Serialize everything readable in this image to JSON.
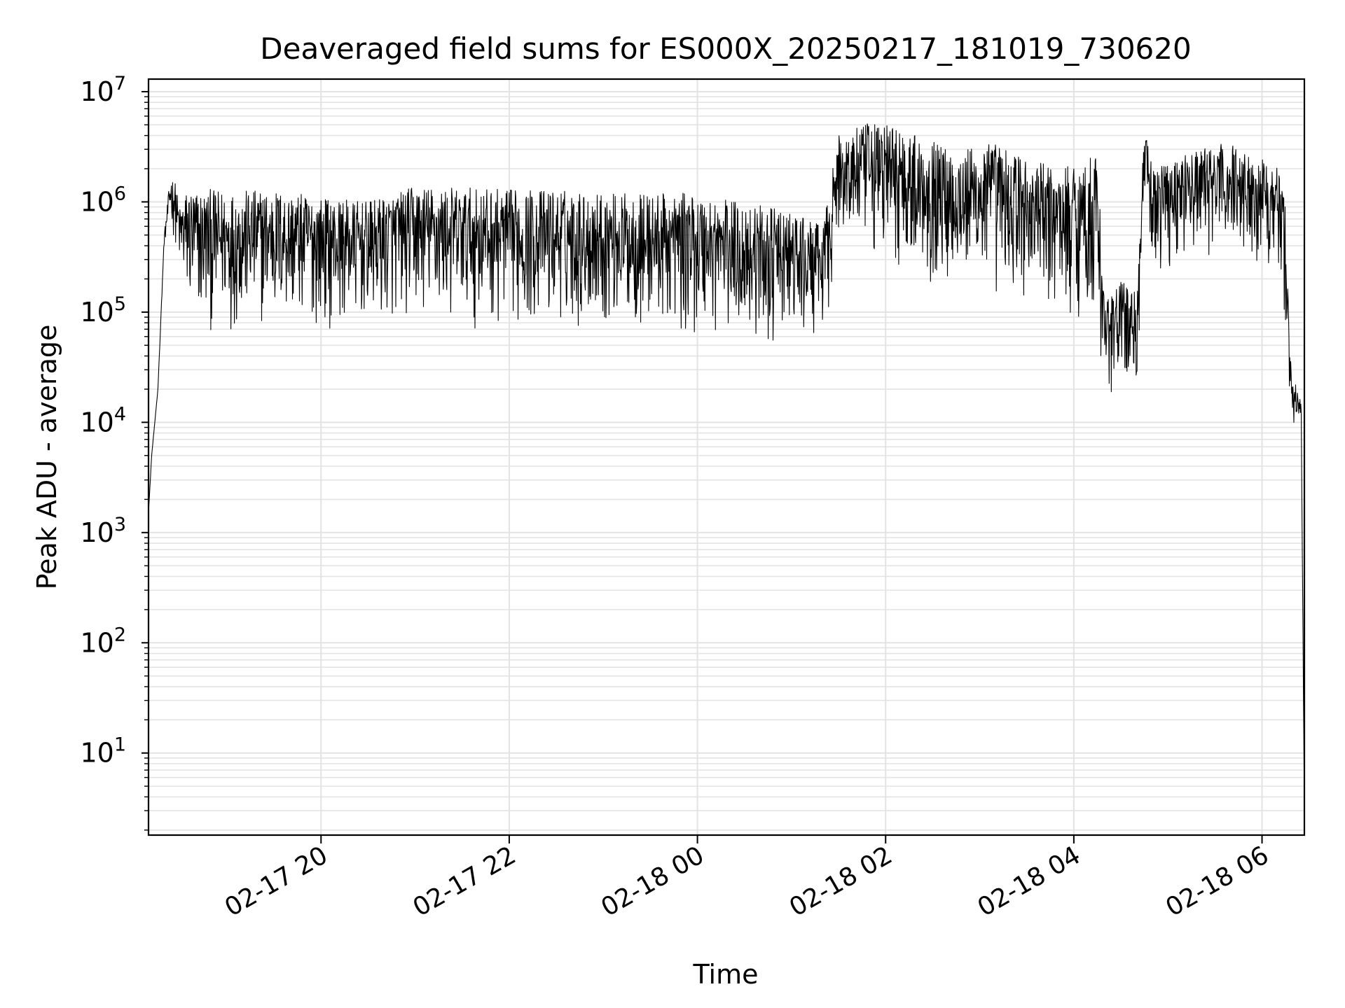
{
  "chart_data": {
    "type": "line",
    "title": "Deaveraged field sums for ES000X_20250217_181019_730620",
    "xlabel": "Time",
    "ylabel": "Peak ADU - average",
    "yscale": "log",
    "ylim": [
      1.8,
      13000000
    ],
    "xlim": [
      "2025-02-17 18:10",
      "2025-02-18 06:27"
    ],
    "grid": true,
    "x_ticks": [
      "2025-02-17 20:00",
      "2025-02-17 22:00",
      "2025-02-18 00:00",
      "2025-02-18 02:00",
      "2025-02-18 04:00",
      "2025-02-18 06:00"
    ],
    "x_tick_labels": [
      "02-17 20",
      "02-17 22",
      "02-18 00",
      "02-18 02",
      "02-18 04",
      "02-18 06"
    ],
    "y_tick_labels": [
      {
        "base": "10",
        "exp": "1"
      },
      {
        "base": "10",
        "exp": "2"
      },
      {
        "base": "10",
        "exp": "3"
      },
      {
        "base": "10",
        "exp": "4"
      },
      {
        "base": "10",
        "exp": "5"
      },
      {
        "base": "10",
        "exp": "6"
      },
      {
        "base": "10",
        "exp": "7"
      }
    ],
    "series": [
      {
        "color": "#000000",
        "x": [
          "2025-02-17 18:10",
          "2025-02-17 18:12",
          "2025-02-17 18:16",
          "2025-02-17 18:20",
          "2025-02-17 18:24",
          "2025-02-17 18:27",
          "2025-02-17 18:30",
          "2025-02-17 18:33",
          "2025-02-17 18:36",
          "2025-02-17 18:40",
          "2025-02-17 18:50",
          "2025-02-17 19:00",
          "2025-02-17 19:30",
          "2025-02-17 20:00",
          "2025-02-17 20:30",
          "2025-02-17 21:00",
          "2025-02-17 21:30",
          "2025-02-17 22:00",
          "2025-02-17 22:30",
          "2025-02-17 23:00",
          "2025-02-17 23:30",
          "2025-02-18 00:00",
          "2025-02-18 00:30",
          "2025-02-18 01:00",
          "2025-02-18 01:20",
          "2025-02-18 01:30",
          "2025-02-18 01:45",
          "2025-02-18 02:00",
          "2025-02-18 02:20",
          "2025-02-18 02:45",
          "2025-02-18 03:10",
          "2025-02-18 03:30",
          "2025-02-18 03:50",
          "2025-02-18 04:15",
          "2025-02-18 04:20",
          "2025-02-18 04:30",
          "2025-02-18 04:40",
          "2025-02-18 04:45",
          "2025-02-18 04:50",
          "2025-02-18 05:00",
          "2025-02-18 05:20",
          "2025-02-18 05:40",
          "2025-02-18 05:55",
          "2025-02-18 06:05",
          "2025-02-18 06:10",
          "2025-02-18 06:13",
          "2025-02-18 06:15",
          "2025-02-18 06:18",
          "2025-02-18 06:22",
          "2025-02-18 06:25",
          "2025-02-18 06:27"
        ],
        "y_high": [
          1500,
          5000,
          20000,
          500000,
          1800000,
          1500000,
          900000,
          1200000,
          1400000,
          1300000,
          1300000,
          1250000,
          1300000,
          1100000,
          1000000,
          1400000,
          1350000,
          1300000,
          1300000,
          1200000,
          1200000,
          1200000,
          1000000,
          800000,
          600000,
          4000000,
          5000000,
          5500000,
          4000000,
          3000000,
          3500000,
          2500000,
          2000000,
          2800000,
          120000,
          200000,
          150000,
          5000000,
          2000000,
          2500000,
          3000000,
          3500000,
          2500000,
          2500000,
          2000000,
          1500000,
          1000000,
          40000,
          20000,
          15000,
          3
        ],
        "y_low": [
          1500,
          5000,
          20000,
          400000,
          600000,
          400000,
          200000,
          100000,
          70000,
          60000,
          60000,
          65000,
          70000,
          70000,
          70000,
          80000,
          70000,
          70000,
          70000,
          70000,
          60000,
          55000,
          50000,
          45000,
          50000,
          400000,
          300000,
          250000,
          200000,
          150000,
          120000,
          100000,
          90000,
          60000,
          15000,
          20000,
          15000,
          800000,
          200000,
          250000,
          300000,
          300000,
          300000,
          250000,
          300000,
          100000,
          50000,
          10000,
          9000,
          9000,
          3
        ]
      }
    ]
  }
}
